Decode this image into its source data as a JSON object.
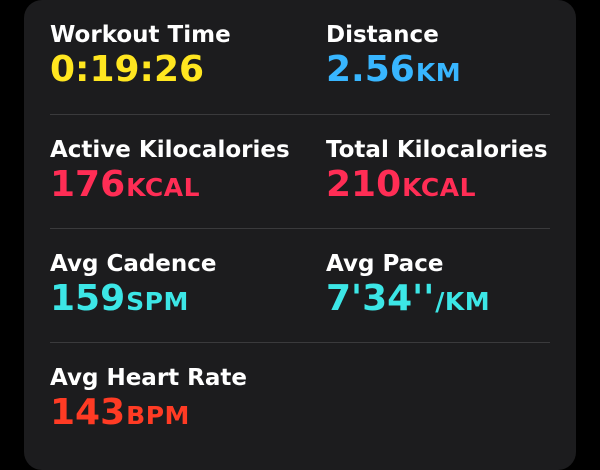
{
  "colors": {
    "background": "#000000",
    "card": "#1c1c1e",
    "divider": "#3a3a3c",
    "label": "#ffffff",
    "workout_time": "#ffe620",
    "distance": "#38b6ff",
    "kilocalories": "#ff2d55",
    "cadence": "#3ce6e6",
    "heart_rate": "#ff3b24"
  },
  "metrics": {
    "workout_time": {
      "label": "Workout Time",
      "value": "0:19:26",
      "unit": ""
    },
    "distance": {
      "label": "Distance",
      "value": "2.56",
      "unit": "KM"
    },
    "active_kilocalories": {
      "label": "Active Kilocalories",
      "value": "176",
      "unit": "KCAL"
    },
    "total_kilocalories": {
      "label": "Total Kilocalories",
      "value": "210",
      "unit": "KCAL"
    },
    "avg_cadence": {
      "label": "Avg Cadence",
      "value": "159",
      "unit": "SPM"
    },
    "avg_pace": {
      "label": "Avg Pace",
      "value": "7'34''",
      "unit": "/KM"
    },
    "avg_heart_rate": {
      "label": "Avg Heart Rate",
      "value": "143",
      "unit": "BPM"
    }
  }
}
